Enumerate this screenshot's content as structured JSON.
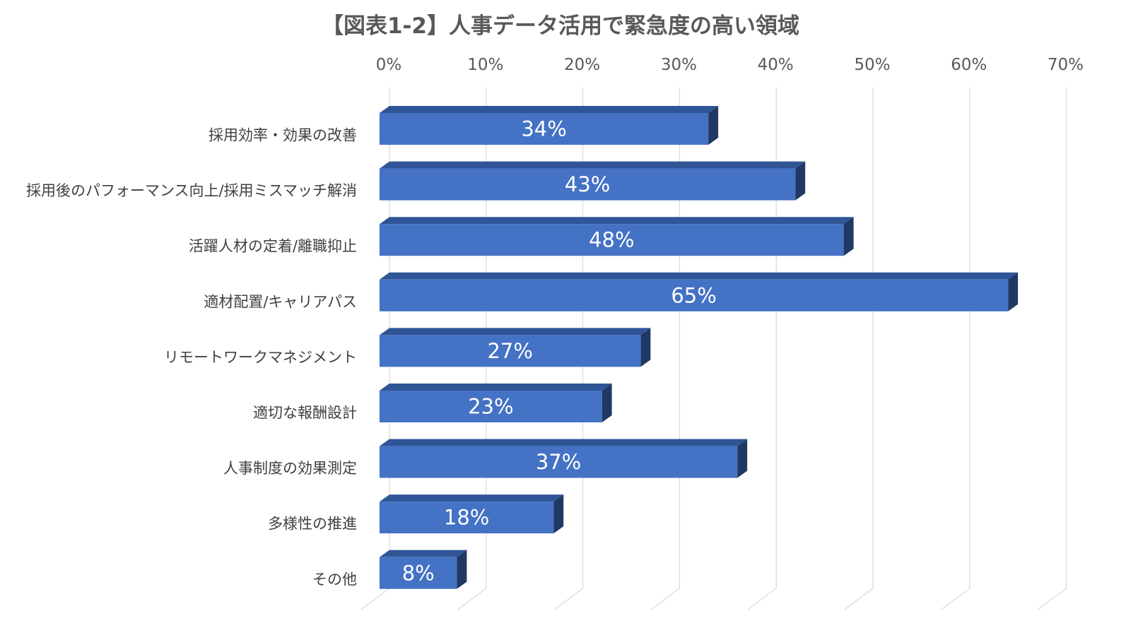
{
  "chart_data": {
    "type": "bar",
    "orientation": "horizontal",
    "style": "3d",
    "title": "【図表1-2】人事データ活用で緊急度の高い領域",
    "categories": [
      "採用効率・効果の改善",
      "採用後のパフォーマンス向上/採用ミスマッチ解消",
      "活躍人材の定着/離職抑止",
      "適材配置/キャリアパス",
      "リモートワークマネジメント",
      "適切な報酬設計",
      "人事制度の効果測定",
      "多様性の推進",
      "その他"
    ],
    "values": [
      34,
      43,
      48,
      65,
      27,
      23,
      37,
      18,
      8
    ],
    "value_labels": [
      "34%",
      "43%",
      "48%",
      "65%",
      "27%",
      "23%",
      "37%",
      "18%",
      "8%"
    ],
    "xlim": [
      0,
      70
    ],
    "x_ticks": [
      0,
      10,
      20,
      30,
      40,
      50,
      60,
      70
    ],
    "x_tick_labels": [
      "0%",
      "10%",
      "20%",
      "30%",
      "40%",
      "50%",
      "60%",
      "70%"
    ],
    "axis_position": "top",
    "grid": true,
    "legend": "none",
    "colors": {
      "bar_front": "#4472c4",
      "bar_top": "#2f5597",
      "bar_side": "#203864",
      "grid": "#d9d9d9",
      "text": "#595959"
    }
  }
}
